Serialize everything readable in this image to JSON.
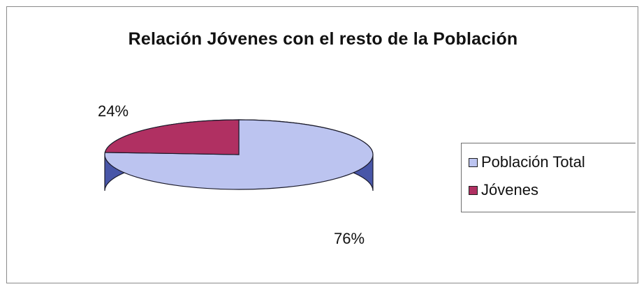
{
  "chart_data": {
    "type": "pie",
    "title": "Relación Jóvenes con el resto de la Población",
    "slices": [
      {
        "label": "Población Total",
        "value": 76,
        "value_label": "76%",
        "color": "#bcc4f0",
        "side_color": "#4856a8"
      },
      {
        "label": "Jóvenes",
        "value": 24,
        "value_label": "24%",
        "color": "#b03062",
        "side_color": "#7a1d45"
      }
    ],
    "legend_position": "right",
    "three_d": true
  }
}
